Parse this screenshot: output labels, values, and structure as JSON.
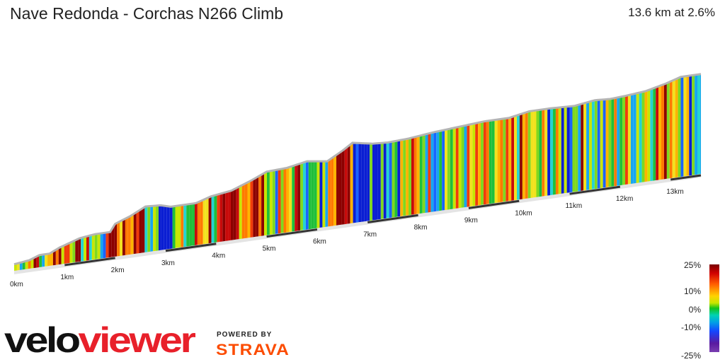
{
  "header": {
    "title": "Nave Redonda - Corchas N266 Climb",
    "stats": "13.6 km at 2.6%"
  },
  "legend": {
    "labels": [
      "25%",
      "10%",
      "0%",
      "-10%",
      "-25%"
    ]
  },
  "branding": {
    "logo_text": "veloviewer",
    "powered_by": "POWERED BY",
    "strava": "STRAVA"
  },
  "chart_data": {
    "type": "area",
    "title": "Nave Redonda - Corchas N266 Climb",
    "distance_km": 13.6,
    "avg_gradient_pct": 2.6,
    "x_unit": "km",
    "x_tick_labels": [
      "0km",
      "1km",
      "2km",
      "3km",
      "4km",
      "5km",
      "6km",
      "7km",
      "8km",
      "9km",
      "10km",
      "11km",
      "12km",
      "13km"
    ],
    "xlim": [
      0,
      13.6
    ],
    "color_scale_pct": [
      25,
      10,
      0,
      -10,
      -25
    ],
    "profile": [
      {
        "km": 0.0,
        "h": 0.04
      },
      {
        "km": 0.3,
        "h": 0.06
      },
      {
        "km": 0.5,
        "h": 0.1
      },
      {
        "km": 0.7,
        "h": 0.1
      },
      {
        "km": 0.9,
        "h": 0.15
      },
      {
        "km": 1.3,
        "h": 0.22
      },
      {
        "km": 1.6,
        "h": 0.24
      },
      {
        "km": 1.9,
        "h": 0.24
      },
      {
        "km": 2.0,
        "h": 0.32
      },
      {
        "km": 2.3,
        "h": 0.38
      },
      {
        "km": 2.6,
        "h": 0.46
      },
      {
        "km": 2.9,
        "h": 0.45
      },
      {
        "km": 3.1,
        "h": 0.42
      },
      {
        "km": 3.6,
        "h": 0.42
      },
      {
        "km": 3.9,
        "h": 0.47
      },
      {
        "km": 4.3,
        "h": 0.5
      },
      {
        "km": 4.7,
        "h": 0.58
      },
      {
        "km": 5.0,
        "h": 0.65
      },
      {
        "km": 5.4,
        "h": 0.66
      },
      {
        "km": 5.8,
        "h": 0.7
      },
      {
        "km": 6.2,
        "h": 0.67
      },
      {
        "km": 6.5,
        "h": 0.76
      },
      {
        "km": 6.7,
        "h": 0.83
      },
      {
        "km": 7.1,
        "h": 0.79
      },
      {
        "km": 7.4,
        "h": 0.78
      },
      {
        "km": 7.8,
        "h": 0.79
      },
      {
        "km": 8.3,
        "h": 0.82
      },
      {
        "km": 8.8,
        "h": 0.84
      },
      {
        "km": 9.3,
        "h": 0.86
      },
      {
        "km": 9.8,
        "h": 0.86
      },
      {
        "km": 10.2,
        "h": 0.9
      },
      {
        "km": 10.6,
        "h": 0.9
      },
      {
        "km": 11.1,
        "h": 0.89
      },
      {
        "km": 11.5,
        "h": 0.92
      },
      {
        "km": 11.8,
        "h": 0.91
      },
      {
        "km": 12.1,
        "h": 0.92
      },
      {
        "km": 12.5,
        "h": 0.94
      },
      {
        "km": 12.9,
        "h": 0.99
      },
      {
        "km": 13.2,
        "h": 1.04
      },
      {
        "km": 13.6,
        "h": 1.04
      }
    ]
  }
}
